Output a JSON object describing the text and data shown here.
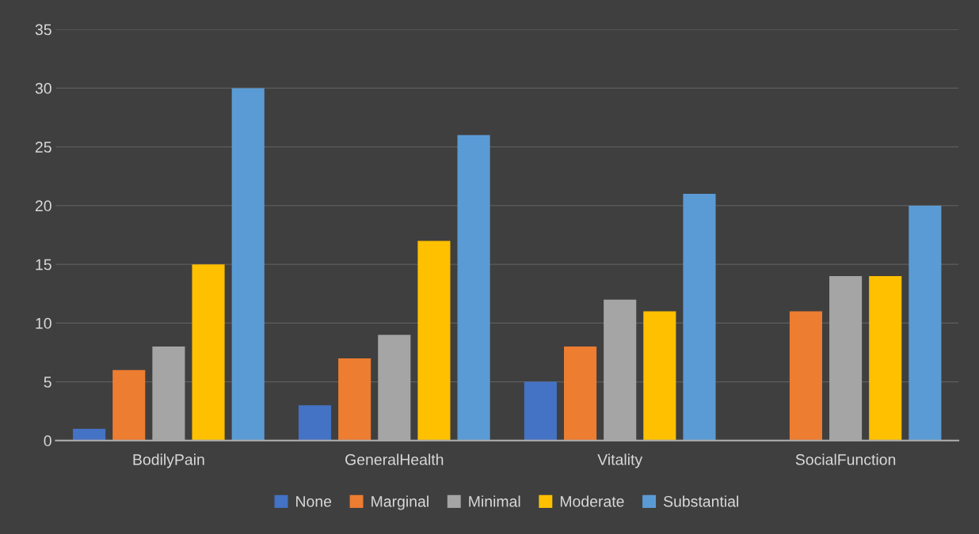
{
  "chart_data": {
    "type": "bar",
    "categories": [
      "BodilyPain",
      "GeneralHealth",
      "Vitality",
      "SocialFunction"
    ],
    "series": [
      {
        "name": "None",
        "color": "#4472c4",
        "values": [
          1,
          3,
          5,
          0
        ]
      },
      {
        "name": "Marginal",
        "color": "#ed7d31",
        "values": [
          6,
          7,
          8,
          11
        ]
      },
      {
        "name": "Minimal",
        "color": "#a5a5a5",
        "values": [
          8,
          9,
          12,
          14
        ]
      },
      {
        "name": "Moderate",
        "color": "#ffc000",
        "values": [
          15,
          17,
          11,
          14
        ]
      },
      {
        "name": "Substantial",
        "color": "#5b9bd5",
        "values": [
          30,
          26,
          21,
          20
        ]
      }
    ],
    "ylim": [
      0,
      35
    ],
    "yticks": [
      0,
      5,
      10,
      15,
      20,
      25,
      30,
      35
    ],
    "grid": "y",
    "legend": "bottom"
  }
}
